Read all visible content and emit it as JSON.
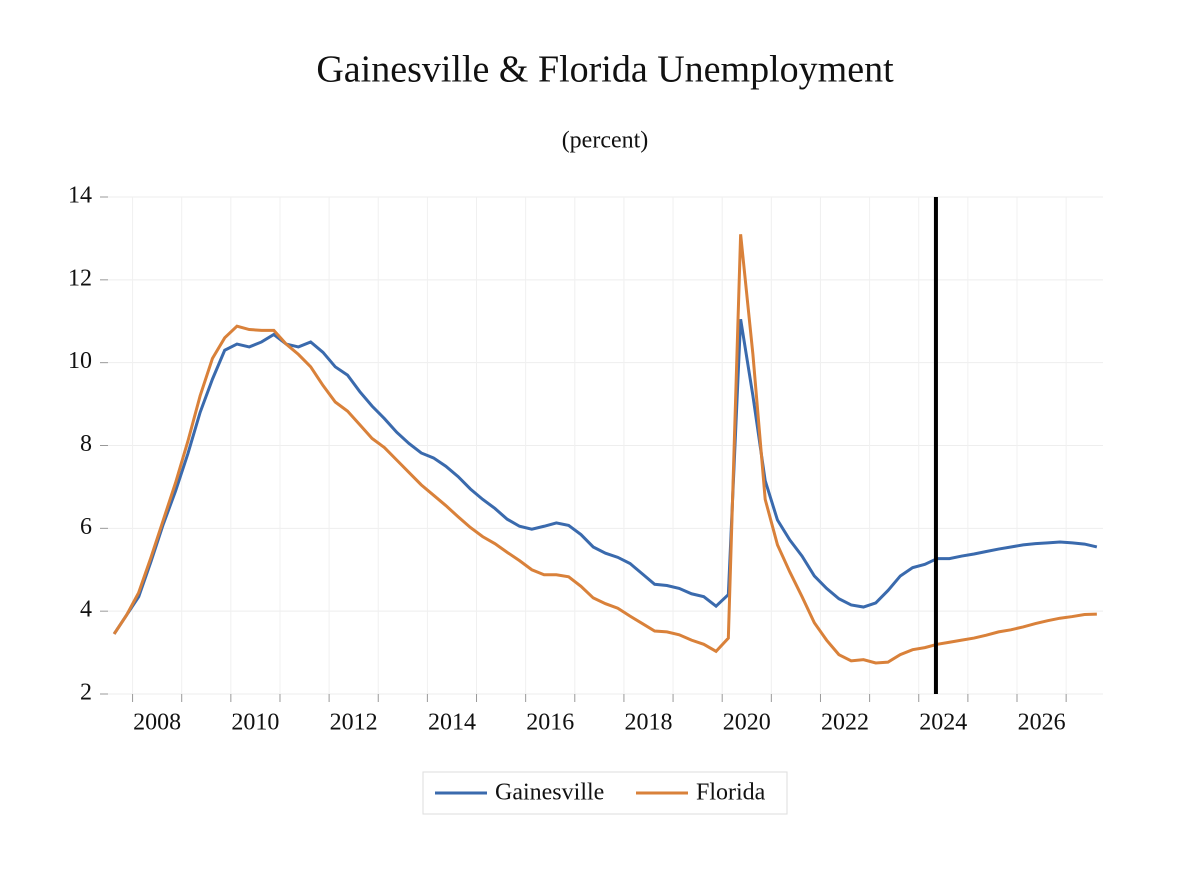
{
  "chart_data": {
    "type": "line",
    "title": "Gainesville & Florida Unemployment",
    "subtitle": "(percent)",
    "x": [
      2007.625,
      2007.875,
      2008.125,
      2008.375,
      2008.625,
      2008.875,
      2009.125,
      2009.375,
      2009.625,
      2009.875,
      2010.125,
      2010.375,
      2010.625,
      2010.875,
      2011.125,
      2011.375,
      2011.625,
      2011.875,
      2012.125,
      2012.375,
      2012.625,
      2012.875,
      2013.125,
      2013.375,
      2013.625,
      2013.875,
      2014.125,
      2014.375,
      2014.625,
      2014.875,
      2015.125,
      2015.375,
      2015.625,
      2015.875,
      2016.125,
      2016.375,
      2016.625,
      2016.875,
      2017.125,
      2017.375,
      2017.625,
      2017.875,
      2018.125,
      2018.375,
      2018.625,
      2018.875,
      2019.125,
      2019.375,
      2019.625,
      2019.875,
      2020.125,
      2020.375,
      2020.625,
      2020.875,
      2021.125,
      2021.375,
      2021.625,
      2021.875,
      2022.125,
      2022.375,
      2022.625,
      2022.875,
      2023.125,
      2023.375,
      2023.625,
      2023.875,
      2024.125,
      2024.375,
      2024.625,
      2024.875,
      2025.125,
      2025.375,
      2025.625,
      2025.875,
      2026.125,
      2026.375,
      2026.625,
      2026.875,
      2027.125,
      2027.375,
      2027.625
    ],
    "series": [
      {
        "name": "Gainesville",
        "color": "#3a6aad",
        "values": [
          3.45,
          3.9,
          4.35,
          5.2,
          6.1,
          6.9,
          7.8,
          8.8,
          9.6,
          10.3,
          10.45,
          10.38,
          10.5,
          10.68,
          10.45,
          10.38,
          10.5,
          10.25,
          9.9,
          9.7,
          9.3,
          8.95,
          8.65,
          8.32,
          8.05,
          7.82,
          7.7,
          7.5,
          7.25,
          6.95,
          6.7,
          6.48,
          6.22,
          6.05,
          5.98,
          6.05,
          6.13,
          6.07,
          5.85,
          5.55,
          5.4,
          5.3,
          5.15,
          4.9,
          4.65,
          4.62,
          4.55,
          4.42,
          4.35,
          4.12,
          4.4,
          11.05,
          9.2,
          7.15,
          6.2,
          5.72,
          5.33,
          4.85,
          4.55,
          4.3,
          4.15,
          4.1,
          4.2,
          4.5,
          4.85,
          5.05,
          5.13,
          5.27,
          5.27,
          5.33,
          5.38,
          5.44,
          5.5,
          5.55,
          5.6,
          5.63,
          5.65,
          5.67,
          5.65,
          5.62,
          5.55
        ]
      },
      {
        "name": "Florida",
        "color": "#d9813a",
        "values": [
          3.45,
          3.9,
          4.45,
          5.3,
          6.2,
          7.1,
          8.1,
          9.2,
          10.1,
          10.6,
          10.88,
          10.8,
          10.78,
          10.78,
          10.45,
          10.2,
          9.9,
          9.45,
          9.05,
          8.83,
          8.5,
          8.17,
          7.95,
          7.65,
          7.35,
          7.05,
          6.8,
          6.55,
          6.28,
          6.02,
          5.8,
          5.63,
          5.42,
          5.22,
          5.0,
          4.88,
          4.88,
          4.83,
          4.6,
          4.32,
          4.18,
          4.07,
          3.88,
          3.7,
          3.52,
          3.5,
          3.43,
          3.3,
          3.2,
          3.03,
          3.35,
          13.1,
          10.2,
          6.7,
          5.6,
          4.95,
          4.35,
          3.72,
          3.3,
          2.95,
          2.8,
          2.83,
          2.75,
          2.77,
          2.95,
          3.07,
          3.12,
          3.2,
          3.25,
          3.3,
          3.35,
          3.42,
          3.5,
          3.55,
          3.62,
          3.7,
          3.77,
          3.83,
          3.87,
          3.92,
          3.93
        ]
      }
    ],
    "xlim": [
      2007.5,
      2027.75
    ],
    "xticks": [
      2008,
      2009,
      2010,
      2011,
      2012,
      2013,
      2014,
      2015,
      2016,
      2017,
      2018,
      2019,
      2020,
      2021,
      2022,
      2023,
      2024,
      2025,
      2026,
      2027
    ],
    "xtick_labels": [
      {
        "value": 2008.5,
        "label": "2008"
      },
      {
        "value": 2010.5,
        "label": "2010"
      },
      {
        "value": 2012.5,
        "label": "2012"
      },
      {
        "value": 2014.5,
        "label": "2014"
      },
      {
        "value": 2016.5,
        "label": "2016"
      },
      {
        "value": 2018.5,
        "label": "2018"
      },
      {
        "value": 2020.5,
        "label": "2020"
      },
      {
        "value": 2022.5,
        "label": "2022"
      },
      {
        "value": 2024.5,
        "label": "2024"
      },
      {
        "value": 2026.5,
        "label": "2026"
      }
    ],
    "ylim": [
      2,
      14
    ],
    "yticks": [
      2,
      4,
      6,
      8,
      10,
      12,
      14
    ],
    "vline": 2024.35,
    "grid": true,
    "legend": "bottom"
  }
}
